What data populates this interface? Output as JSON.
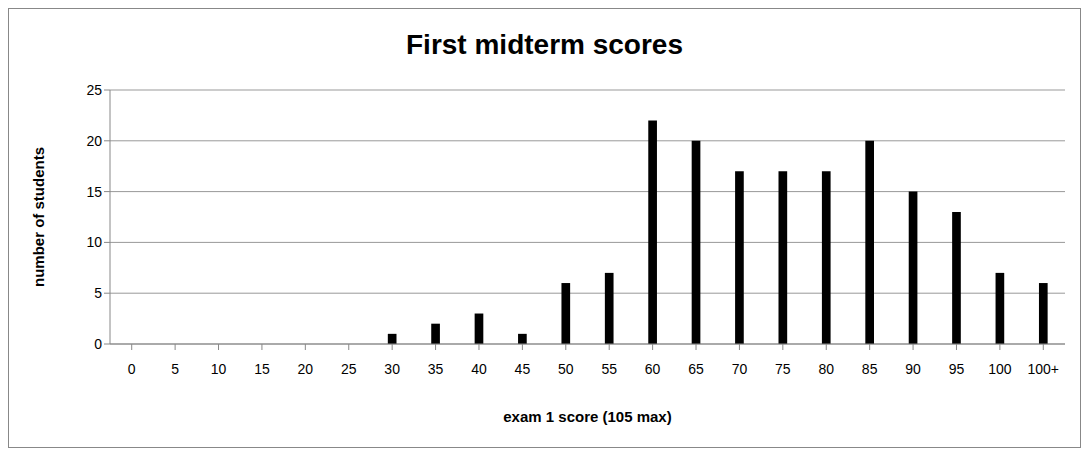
{
  "chart_data": {
    "type": "bar",
    "title": "First midterm scores",
    "x_label": "exam 1 score (105 max)",
    "y_label": "number of students",
    "categories": [
      "0",
      "5",
      "10",
      "15",
      "20",
      "25",
      "30",
      "35",
      "40",
      "45",
      "50",
      "55",
      "60",
      "65",
      "70",
      "75",
      "80",
      "85",
      "90",
      "95",
      "100",
      "100+"
    ],
    "values": [
      0,
      0,
      0,
      0,
      0,
      0,
      1,
      2,
      3,
      1,
      6,
      7,
      22,
      20,
      17,
      17,
      17,
      20,
      15,
      13,
      7,
      6
    ],
    "color": "#000000",
    "ylim": [
      0,
      25
    ],
    "yticks": [
      0,
      5,
      10,
      15,
      20,
      25
    ],
    "grid": true
  }
}
